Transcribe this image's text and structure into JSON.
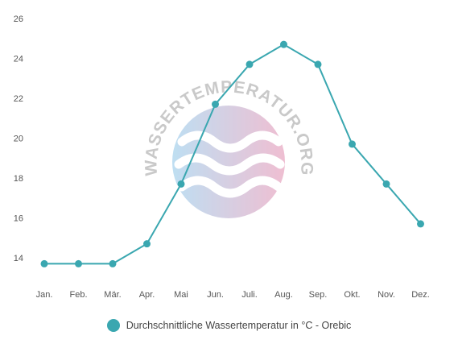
{
  "chart_data": {
    "type": "line",
    "categories": [
      "Jan.",
      "Feb.",
      "Mär.",
      "Apr.",
      "Mai",
      "Jun.",
      "Juli.",
      "Aug.",
      "Sep.",
      "Okt.",
      "Nov.",
      "Dez."
    ],
    "series": [
      {
        "name": "Durchschnittliche Wassertemperatur in °C - Orebic",
        "values": [
          13.7,
          13.7,
          13.7,
          14.7,
          17.7,
          21.7,
          23.7,
          24.7,
          23.7,
          19.7,
          17.7,
          15.7
        ]
      }
    ],
    "yticks": [
      14,
      16,
      18,
      20,
      22,
      24,
      26
    ],
    "ylim": [
      13,
      26
    ],
    "grid": false,
    "legend_position": "bottom-center",
    "title": "",
    "xlabel": "",
    "ylabel": ""
  },
  "colors": {
    "series": "#3aa7b0",
    "axis_text": "#555555"
  },
  "watermark": {
    "text": "WASSERTEMPERATUR.ORG"
  }
}
